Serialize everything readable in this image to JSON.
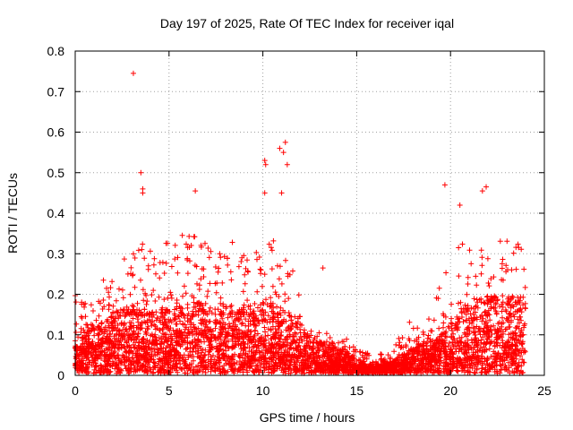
{
  "chart_data": {
    "type": "scatter",
    "title": "Day 197 of 2025, Rate Of TEC Index for receiver iqal",
    "xlabel": "GPS time / hours",
    "ylabel": "ROTI / TECUs",
    "xlim": [
      0,
      25
    ],
    "ylim": [
      0,
      0.8
    ],
    "xticks": [
      0,
      5,
      10,
      15,
      20,
      25
    ],
    "xtick_labels": [
      "0",
      "5",
      "10",
      "15",
      "20",
      "25"
    ],
    "yticks": [
      0,
      0.1,
      0.2,
      0.3,
      0.4,
      0.5,
      0.6,
      0.7,
      0.8
    ],
    "ytick_labels": [
      "0",
      "0.1",
      "0.2",
      "0.3",
      "0.4",
      "0.5",
      "0.6",
      "0.7",
      "0.8"
    ],
    "grid": true,
    "marker": "+",
    "color": "#ff0000",
    "envelope": {
      "x": [
        0,
        0.5,
        1,
        1.5,
        2,
        2.5,
        3,
        3.5,
        4,
        4.5,
        5,
        5.5,
        6,
        6.5,
        7,
        7.5,
        8,
        8.5,
        9,
        9.5,
        10,
        10.5,
        11,
        11.5,
        12,
        12.5,
        13,
        13.5,
        14,
        14.5,
        15,
        15.5,
        16,
        16.5,
        17,
        17.5,
        18,
        18.5,
        19,
        19.5,
        20,
        20.5,
        21,
        21.5,
        22,
        22.5,
        23,
        23.5,
        24
      ],
      "median": [
        0.07,
        0.07,
        0.07,
        0.08,
        0.09,
        0.1,
        0.1,
        0.1,
        0.1,
        0.1,
        0.1,
        0.11,
        0.11,
        0.11,
        0.11,
        0.1,
        0.11,
        0.1,
        0.1,
        0.1,
        0.11,
        0.11,
        0.1,
        0.09,
        0.07,
        0.06,
        0.05,
        0.045,
        0.04,
        0.035,
        0.02,
        0.015,
        0.015,
        0.015,
        0.02,
        0.03,
        0.04,
        0.05,
        0.05,
        0.06,
        0.08,
        0.1,
        0.11,
        0.12,
        0.12,
        0.12,
        0.12,
        0.12,
        0.12
      ],
      "upper": [
        0.2,
        0.18,
        0.19,
        0.23,
        0.26,
        0.3,
        0.33,
        0.32,
        0.33,
        0.32,
        0.33,
        0.35,
        0.34,
        0.36,
        0.32,
        0.3,
        0.34,
        0.32,
        0.3,
        0.3,
        0.36,
        0.35,
        0.33,
        0.27,
        0.18,
        0.12,
        0.1,
        0.1,
        0.09,
        0.085,
        0.06,
        0.05,
        0.05,
        0.05,
        0.06,
        0.12,
        0.13,
        0.13,
        0.15,
        0.23,
        0.27,
        0.33,
        0.32,
        0.31,
        0.33,
        0.34,
        0.35,
        0.33,
        0.3
      ]
    },
    "outliers": [
      {
        "x": 3.1,
        "y": 0.745
      },
      {
        "x": 3.5,
        "y": 0.5
      },
      {
        "x": 3.6,
        "y": 0.46
      },
      {
        "x": 3.6,
        "y": 0.45
      },
      {
        "x": 6.4,
        "y": 0.455
      },
      {
        "x": 10.1,
        "y": 0.53
      },
      {
        "x": 10.15,
        "y": 0.52
      },
      {
        "x": 10.1,
        "y": 0.45
      },
      {
        "x": 10.9,
        "y": 0.56
      },
      {
        "x": 11.2,
        "y": 0.575
      },
      {
        "x": 11.1,
        "y": 0.55
      },
      {
        "x": 11.3,
        "y": 0.52
      },
      {
        "x": 11.0,
        "y": 0.45
      },
      {
        "x": 13.2,
        "y": 0.265
      },
      {
        "x": 19.7,
        "y": 0.47
      },
      {
        "x": 21.9,
        "y": 0.465
      },
      {
        "x": 21.7,
        "y": 0.455
      },
      {
        "x": 20.5,
        "y": 0.42
      }
    ]
  }
}
